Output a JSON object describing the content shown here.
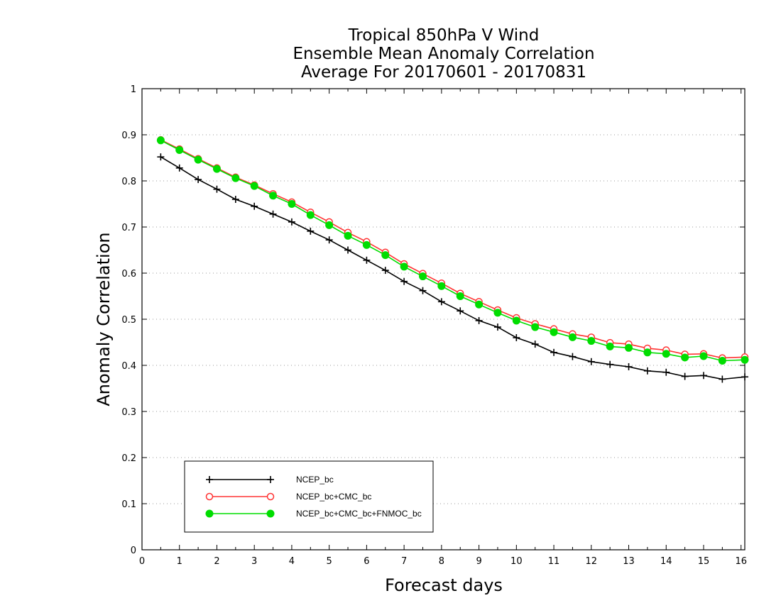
{
  "chart_data": {
    "type": "line",
    "title_lines": [
      "Tropical 850hPa V Wind",
      "Ensemble Mean Anomaly Correlation",
      "Average For 20170601 - 20170831"
    ],
    "xlabel": "Forecast days",
    "ylabel": "Anomaly Correlation",
    "xlim": [
      0,
      16.1
    ],
    "ylim": [
      0,
      1
    ],
    "xticks": [
      "0",
      "1",
      "2",
      "3",
      "4",
      "5",
      "6",
      "7",
      "8",
      "9",
      "10",
      "11",
      "12",
      "13",
      "14",
      "15",
      "16"
    ],
    "yticks": [
      "0",
      "0.1",
      "0.2",
      "0.3",
      "0.4",
      "0.5",
      "0.6",
      "0.7",
      "0.8",
      "0.9",
      "1"
    ],
    "grid": "horizontal-dotted",
    "legend_position": "bottom-left",
    "x": [
      0.5,
      1,
      1.5,
      2,
      2.5,
      3,
      3.5,
      4,
      4.5,
      5,
      5.5,
      6,
      6.5,
      7,
      7.5,
      8,
      8.5,
      9,
      9.5,
      10,
      10.5,
      11,
      11.5,
      12,
      12.5,
      13,
      13.5,
      14,
      14.5,
      15,
      15.5,
      16.1
    ],
    "series": [
      {
        "name": "NCEP_bc",
        "color": "#000000",
        "marker": "plus",
        "values": [
          0.852,
          0.828,
          0.803,
          0.782,
          0.76,
          0.745,
          0.728,
          0.711,
          0.691,
          0.672,
          0.65,
          0.628,
          0.606,
          0.582,
          0.562,
          0.538,
          0.518,
          0.497,
          0.483,
          0.46,
          0.446,
          0.428,
          0.419,
          0.408,
          0.402,
          0.397,
          0.388,
          0.385,
          0.376,
          0.378,
          0.37,
          0.375
        ]
      },
      {
        "name": "NCEP_bc+CMC_bc",
        "color": "#ff3333",
        "marker": "open-circle",
        "values": [
          0.889,
          0.869,
          0.848,
          0.828,
          0.808,
          0.791,
          0.772,
          0.754,
          0.732,
          0.711,
          0.688,
          0.668,
          0.645,
          0.62,
          0.599,
          0.578,
          0.556,
          0.538,
          0.52,
          0.503,
          0.49,
          0.479,
          0.468,
          0.461,
          0.449,
          0.446,
          0.437,
          0.433,
          0.424,
          0.425,
          0.416,
          0.418
        ]
      },
      {
        "name": "NCEP_bc+CMC_bc+FNMOC_bc",
        "color": "#00dd00",
        "marker": "filled-circle",
        "values": [
          0.888,
          0.867,
          0.846,
          0.826,
          0.806,
          0.789,
          0.768,
          0.75,
          0.726,
          0.704,
          0.681,
          0.661,
          0.639,
          0.614,
          0.593,
          0.572,
          0.55,
          0.532,
          0.514,
          0.497,
          0.483,
          0.472,
          0.461,
          0.453,
          0.441,
          0.438,
          0.428,
          0.425,
          0.417,
          0.42,
          0.41,
          0.412
        ]
      }
    ]
  }
}
